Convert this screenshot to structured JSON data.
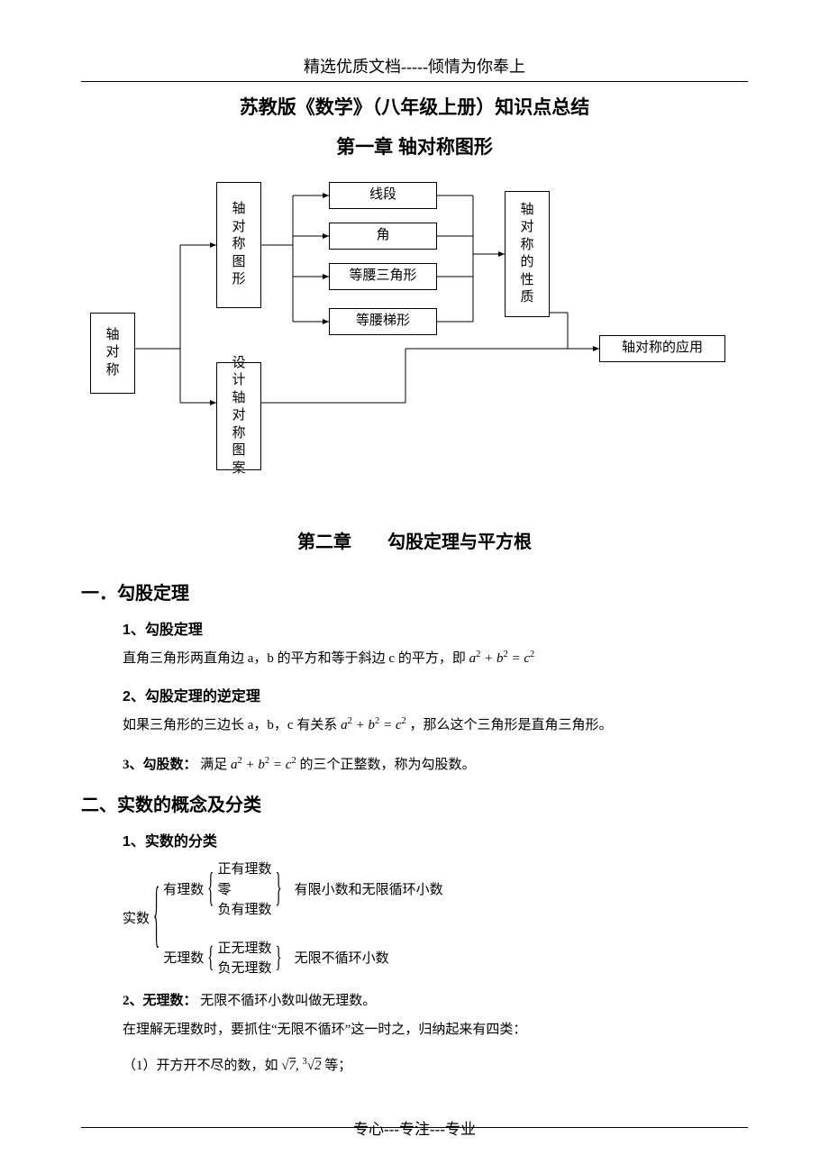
{
  "header": "精选优质文档-----倾情为你奉上",
  "title": "苏教版《数学》（八年级上册）知识点总结",
  "chapter1": {
    "title": "第一章  轴对称图形",
    "nodes": {
      "root": "轴对称",
      "shapes": "轴对称图形",
      "design": "设计轴对称图案",
      "seg": "线段",
      "angle": "角",
      "iso_tri": "等腰三角形",
      "iso_trap": "等腰梯形",
      "prop": "轴对称的性质",
      "app": "轴对称的应用"
    }
  },
  "chapter2": {
    "title": "第二章　　勾股定理与平方根",
    "s1": {
      "h": "一．勾股定理",
      "p1_h": "1、勾股定理",
      "p1_t": "直角三角形两直角边 a，b 的平方和等于斜边 c 的平方，即",
      "p1_f": "a² + b² = c²",
      "p2_h": "2、勾股定理的逆定理",
      "p2_t1": "如果三角形的三边长 a，b，c 有关系",
      "p2_f": "a² + b² = c²",
      "p2_t2": "，那么这个三角形是直角三角形。",
      "p3_h": "3、勾股数：",
      "p3_t1": "满足",
      "p3_f": "a² + b² = c²",
      "p3_t2": "的三个正整数，称为勾股数。"
    },
    "s2": {
      "h": "二、实数的概念及分类",
      "p1_h": "1、实数的分类",
      "tree": {
        "root": "实数",
        "rational": "有理数",
        "rat_items": [
          "正有理数",
          "零",
          "负有理数"
        ],
        "rat_note": "有限小数和无限循环小数",
        "irrational": "无理数",
        "irr_items": [
          "正无理数",
          "负无理数"
        ],
        "irr_note": "无限不循环小数"
      },
      "p2_h": "2、无理数：",
      "p2_t": "无限不循环小数叫做无理数。",
      "p3_t": "在理解无理数时，要抓住“无限不循环”这一时之，归纳起来有四类：",
      "p4_t1": "（1）开方开不尽的数，如",
      "p4_f": "√7, ∛2",
      "p4_t2": "等；"
    }
  },
  "footer": "专心---专注---专业",
  "colors": {
    "text": "#000000",
    "bg": "#ffffff",
    "line": "#000000"
  }
}
